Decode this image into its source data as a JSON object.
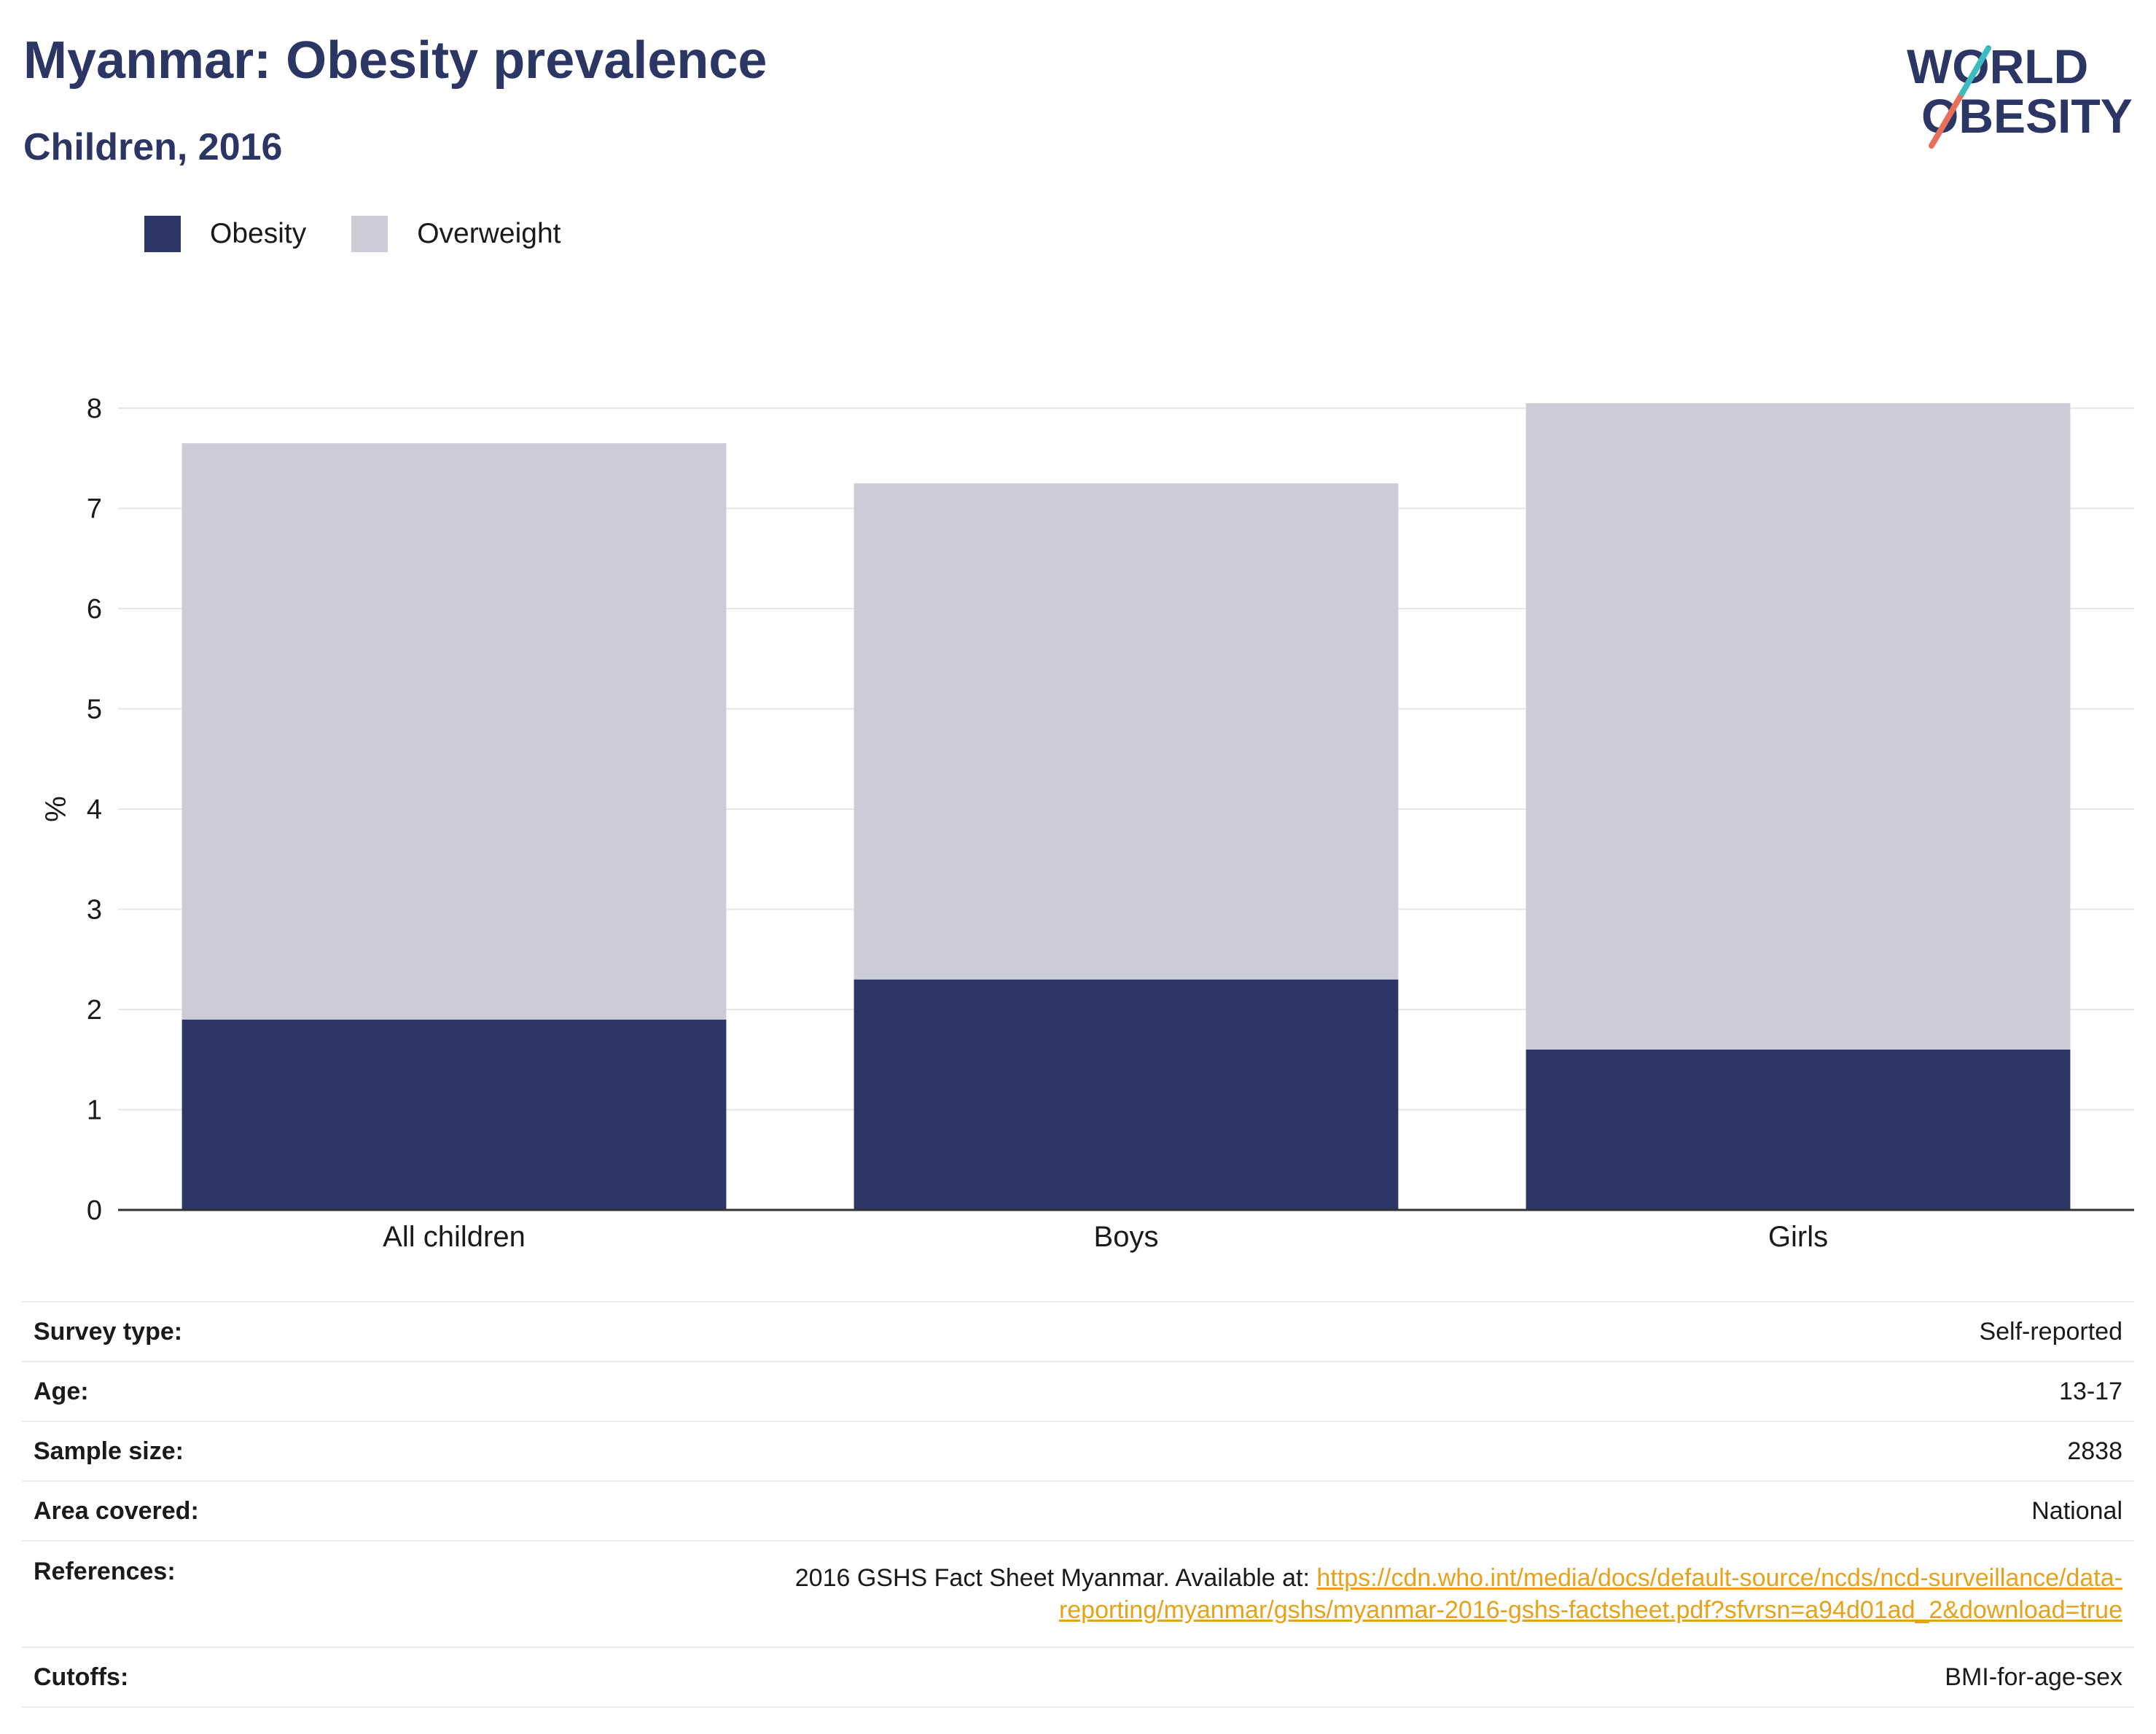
{
  "title": "Myanmar: Obesity prevalence",
  "subtitle": "Children, 2016",
  "logo": {
    "line1": "WORLD",
    "line2": "OBESITY",
    "colors": [
      "#2b3664",
      "#e8705a",
      "#3bbcc0"
    ]
  },
  "legend": [
    {
      "label": "Obesity",
      "color": "#2b3664"
    },
    {
      "label": "Overweight",
      "color": "#cbccd7"
    }
  ],
  "chart_data": {
    "type": "bar",
    "stacked": true,
    "categories": [
      "All children",
      "Boys",
      "Girls"
    ],
    "series": [
      {
        "name": "Obesity",
        "values": [
          1.9,
          2.3,
          1.6
        ],
        "color": "#2b3664"
      },
      {
        "name": "Overweight",
        "values": [
          5.75,
          4.95,
          6.45
        ],
        "color": "#cbccd7"
      }
    ],
    "ylabel": "%",
    "xlabel": "",
    "ylim": [
      0,
      8
    ],
    "yticks": [
      0,
      1,
      2,
      3,
      4,
      5,
      6,
      7,
      8
    ],
    "grid": true,
    "legend_position": "top-left"
  },
  "info": {
    "survey_type_label": "Survey type:",
    "survey_type_value": "Self-reported",
    "age_label": "Age:",
    "age_value": "13-17",
    "sample_size_label": "Sample size:",
    "sample_size_value": "2838",
    "area_label": "Area covered:",
    "area_value": "National",
    "references_label": "References:",
    "references_text": "2016 GSHS Fact Sheet Myanmar. Available at: ",
    "references_link_1": "https://cdn.who.int/media/docs/default-source/ncds/ncd-surveillance/data-",
    "references_link_2": "reporting/myanmar/gshs/myanmar-2016-gshs-factsheet.pdf?sfvrsn=a94d01ad_2&download=true",
    "cutoffs_label": "Cutoffs:",
    "cutoffs_value": "BMI-for-age-sex"
  }
}
